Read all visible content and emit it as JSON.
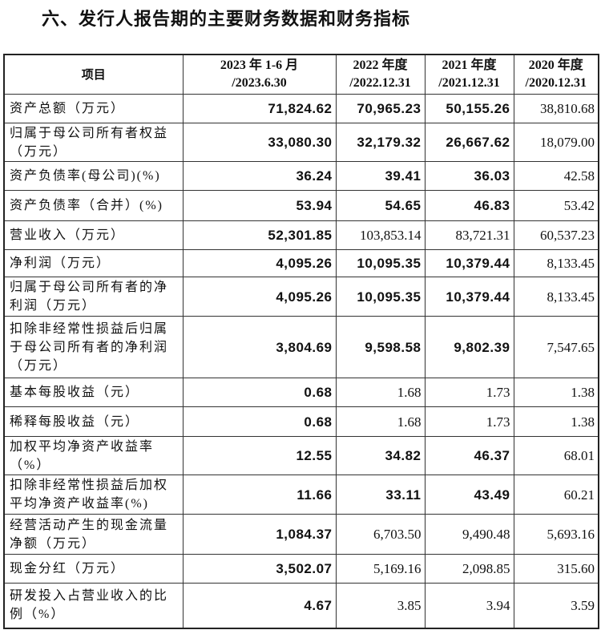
{
  "title": "六、发行人报告期的主要财务数据和财务指标",
  "table": {
    "headers": [
      "项目",
      "2023 年 1-6 月\n/2023.6.30",
      "2022 年度\n/2022.12.31",
      "2021 年度\n/2021.12.31",
      "2020 年度\n/2020.12.31"
    ],
    "header_lines": [
      [
        "项目"
      ],
      [
        "2023 年 1-6 月",
        "/2023.6.30"
      ],
      [
        "2022 年度",
        "/2022.12.31"
      ],
      [
        "2021 年度",
        "/2021.12.31"
      ],
      [
        "2020 年度",
        "/2020.12.31"
      ]
    ],
    "rows": [
      {
        "label": "资产总额（万元）",
        "values": [
          "71,824.62",
          "70,965.23",
          "50,155.26",
          "38,810.68"
        ],
        "bold": [
          true,
          true,
          true,
          false
        ]
      },
      {
        "label": "归属于母公司所有者权益（万元）",
        "values": [
          "33,080.30",
          "32,179.32",
          "26,667.62",
          "18,079.00"
        ],
        "bold": [
          true,
          true,
          true,
          false
        ]
      },
      {
        "label": "资产负债率(母公司)(%)",
        "values": [
          "36.24",
          "39.41",
          "36.03",
          "42.58"
        ],
        "bold": [
          true,
          true,
          true,
          false
        ]
      },
      {
        "label": "资产负债率（合并）(%)",
        "values": [
          "53.94",
          "54.65",
          "46.83",
          "53.42"
        ],
        "bold": [
          true,
          true,
          true,
          false
        ]
      },
      {
        "label": "营业收入（万元）",
        "values": [
          "52,301.85",
          "103,853.14",
          "83,721.31",
          "60,537.23"
        ],
        "bold": [
          true,
          false,
          false,
          false
        ]
      },
      {
        "label": "净利润（万元）",
        "values": [
          "4,095.26",
          "10,095.35",
          "10,379.44",
          "8,133.45"
        ],
        "bold": [
          true,
          true,
          true,
          false
        ]
      },
      {
        "label": "归属于母公司所有者的净利润（万元）",
        "values": [
          "4,095.26",
          "10,095.35",
          "10,379.44",
          "8,133.45"
        ],
        "bold": [
          true,
          true,
          true,
          false
        ]
      },
      {
        "label": "扣除非经常性损益后归属于母公司所有者的净利润（万元）",
        "values": [
          "3,804.69",
          "9,598.58",
          "9,802.39",
          "7,547.65"
        ],
        "bold": [
          true,
          true,
          true,
          false
        ]
      },
      {
        "label": "基本每股收益（元）",
        "values": [
          "0.68",
          "1.68",
          "1.73",
          "1.38"
        ],
        "bold": [
          true,
          false,
          false,
          false
        ]
      },
      {
        "label": "稀释每股收益（元）",
        "values": [
          "0.68",
          "1.68",
          "1.73",
          "1.38"
        ],
        "bold": [
          true,
          false,
          false,
          false
        ]
      },
      {
        "label": "加权平均净资产收益率（%）",
        "values": [
          "12.55",
          "34.82",
          "46.37",
          "68.01"
        ],
        "bold": [
          true,
          true,
          true,
          false
        ]
      },
      {
        "label": "扣除非经常性损益后加权平均净资产收益率(%)",
        "values": [
          "11.66",
          "33.11",
          "43.49",
          "60.21"
        ],
        "bold": [
          true,
          true,
          true,
          false
        ]
      },
      {
        "label": "经营活动产生的现金流量净额（万元）",
        "values": [
          "1,084.37",
          "6,703.50",
          "9,490.48",
          "5,693.16"
        ],
        "bold": [
          true,
          false,
          false,
          false
        ]
      },
      {
        "label": "现金分红（万元）",
        "values": [
          "3,502.07",
          "5,169.16",
          "2,098.85",
          "315.60"
        ],
        "bold": [
          true,
          false,
          false,
          false
        ]
      },
      {
        "label": "研发投入占营业收入的比例（%）",
        "values": [
          "4.67",
          "3.85",
          "3.94",
          "3.59"
        ],
        "bold": [
          true,
          false,
          false,
          false
        ]
      }
    ]
  }
}
